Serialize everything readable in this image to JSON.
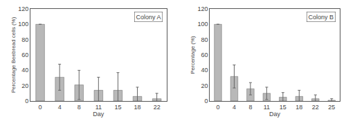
{
  "chart_data": [
    {
      "type": "bar",
      "title": "Colony A",
      "xlabel": "Day",
      "ylabel": "Percentage Beebread cells (%)",
      "categories": [
        "0",
        "4",
        "8",
        "11",
        "15",
        "18",
        "22"
      ],
      "values": [
        100,
        31,
        21,
        14,
        14,
        6,
        3
      ],
      "errors": [
        0,
        17,
        19,
        17,
        23,
        12,
        7
      ],
      "color": "#b8b8b8",
      "ylim": [
        0,
        120
      ],
      "yticks": [
        0,
        20,
        40,
        60,
        80,
        100,
        120
      ],
      "grid": false
    },
    {
      "type": "bar",
      "title": "Colony B",
      "xlabel": "Day",
      "ylabel": "Percentage (%)",
      "categories": [
        "0",
        "4",
        "8",
        "11",
        "15",
        "18",
        "22",
        "25"
      ],
      "values": [
        100,
        32,
        16,
        10,
        5,
        6,
        3,
        1
      ],
      "errors": [
        0,
        15,
        8,
        8,
        6,
        8,
        5,
        2
      ],
      "color": "#b8b8b8",
      "ylim": [
        0,
        120
      ],
      "yticks": [
        0,
        20,
        40,
        60,
        80,
        100,
        120
      ],
      "grid": false
    }
  ]
}
